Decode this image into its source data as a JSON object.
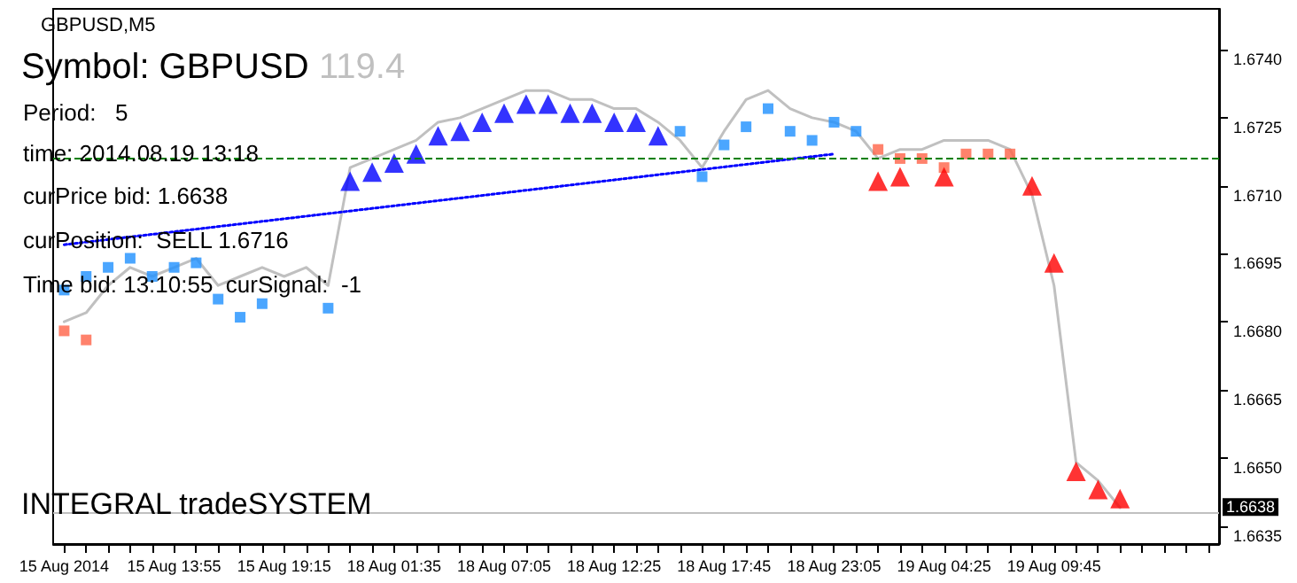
{
  "chart_data": {
    "type": "line",
    "title": "GBPUSD,M5",
    "categories": [
      "15 Aug 2014",
      null,
      null,
      null,
      null,
      "15 Aug 13:55",
      null,
      null,
      null,
      null,
      "15 Aug 19:15",
      null,
      null,
      null,
      null,
      "18 Aug 01:35",
      null,
      null,
      null,
      null,
      "18 Aug 07:05",
      null,
      null,
      null,
      null,
      "18 Aug 12:25",
      null,
      null,
      null,
      null,
      "18 Aug 17:45",
      null,
      null,
      null,
      null,
      "18 Aug 23:05",
      null,
      null,
      null,
      null,
      "19 Aug 04:25",
      null,
      null,
      null,
      null,
      "19 Aug 09:45",
      null,
      null,
      null,
      null,
      null,
      null,
      null
    ],
    "series": [
      {
        "color": "#c0c0c0",
        "marker": "none",
        "values": [
          1.668,
          1.6682,
          1.6688,
          1.6692,
          1.669,
          1.6692,
          1.6694,
          1.6688,
          1.669,
          1.6692,
          1.669,
          1.6692,
          1.6688,
          1.6714,
          1.6716,
          1.6718,
          1.672,
          1.6724,
          1.6725,
          1.6727,
          1.6729,
          1.6731,
          1.6731,
          1.6729,
          1.6729,
          1.6727,
          1.6727,
          1.6724,
          1.672,
          1.6714,
          1.6722,
          1.6729,
          1.6731,
          1.6727,
          1.6725,
          1.6724,
          1.6722,
          1.6716,
          1.6718,
          1.6718,
          1.672,
          1.672,
          1.672,
          1.6718,
          1.6708,
          1.6688,
          1.6649,
          1.6645,
          1.6639,
          null,
          null,
          null,
          null
        ]
      },
      {
        "color": "#0000ff",
        "marker": "none",
        "line_style": "dotted",
        "values": [
          1.6697,
          null,
          null,
          null,
          null,
          null,
          null,
          null,
          null,
          null,
          null,
          null,
          null,
          null,
          null,
          null,
          null,
          null,
          null,
          null,
          null,
          null,
          null,
          null,
          null,
          null,
          null,
          null,
          null,
          null,
          null,
          null,
          null,
          null,
          null,
          1.6717,
          null,
          null,
          null,
          null,
          null,
          null,
          null,
          null,
          null,
          null,
          null,
          null,
          null,
          null,
          null,
          null,
          null
        ]
      },
      {
        "type": "scatter",
        "color": "#1e90ff",
        "marker": "square",
        "values": [
          1.6687,
          1.669,
          1.6692,
          1.6694,
          1.669,
          1.6692,
          1.6693,
          1.6685,
          1.6681,
          1.6684,
          null,
          null,
          1.6683,
          null,
          null,
          null,
          null,
          null,
          null,
          null,
          null,
          null,
          null,
          null,
          null,
          null,
          null,
          null,
          1.6722,
          1.6712,
          1.6719,
          1.6723,
          1.6727,
          1.6722,
          1.672,
          1.6724,
          1.6722,
          null,
          null,
          null,
          null,
          null,
          null,
          null,
          null,
          null,
          null,
          null,
          null,
          null,
          null,
          null,
          null
        ]
      },
      {
        "type": "scatter",
        "color": "#ff6347",
        "marker": "square",
        "values": [
          1.6678,
          1.6676,
          null,
          null,
          null,
          null,
          null,
          null,
          null,
          null,
          null,
          null,
          null,
          null,
          null,
          null,
          null,
          null,
          null,
          null,
          null,
          null,
          null,
          null,
          null,
          null,
          null,
          null,
          null,
          null,
          null,
          null,
          null,
          null,
          null,
          null,
          null,
          1.6718,
          1.6716,
          1.6716,
          1.6714,
          1.6717,
          1.6717,
          1.6717,
          null,
          null,
          null,
          null,
          null,
          null,
          null,
          null,
          null
        ]
      },
      {
        "type": "scatter",
        "color": "#0000ff",
        "marker": "triangle",
        "values": [
          null,
          null,
          null,
          null,
          null,
          null,
          null,
          null,
          null,
          null,
          null,
          null,
          null,
          1.6711,
          1.6713,
          1.6715,
          1.6717,
          1.6721,
          1.6722,
          1.6724,
          1.6726,
          1.6728,
          1.6728,
          1.6726,
          1.6726,
          1.6724,
          1.6724,
          1.6721,
          null,
          null,
          null,
          null,
          null,
          null,
          null,
          null,
          null,
          null,
          null,
          null,
          null,
          null,
          null,
          null,
          null,
          null,
          null,
          null,
          null,
          null,
          null,
          null,
          null
        ]
      },
      {
        "type": "scatter",
        "color": "#ff0000",
        "marker": "triangle",
        "values": [
          null,
          null,
          null,
          null,
          null,
          null,
          null,
          null,
          null,
          null,
          null,
          null,
          null,
          null,
          null,
          null,
          null,
          null,
          null,
          null,
          null,
          null,
          null,
          null,
          null,
          null,
          null,
          null,
          null,
          null,
          null,
          null,
          null,
          null,
          null,
          null,
          null,
          1.6711,
          1.6712,
          null,
          1.6712,
          null,
          null,
          null,
          1.671,
          1.6693,
          1.6647,
          1.6643,
          1.6641,
          null,
          null,
          null,
          null
        ]
      }
    ],
    "ylim": [
      1.6631,
      1.6749
    ],
    "yticks": [
      {
        "value": 1.6635,
        "label": "1.6635"
      },
      {
        "value": 1.665,
        "label": "1.6650"
      },
      {
        "value": 1.6665,
        "label": "1.6665"
      },
      {
        "value": 1.668,
        "label": "1.6680"
      },
      {
        "value": 1.6695,
        "label": "1.6695"
      },
      {
        "value": 1.671,
        "label": "1.6710"
      },
      {
        "value": 1.6725,
        "label": "1.6725"
      },
      {
        "value": 1.674,
        "label": "1.6740"
      }
    ],
    "ref_lines": [
      {
        "axis": "y",
        "value": 1.6716,
        "label": null,
        "color": "#008000",
        "line_style": "dashed"
      },
      {
        "axis": "y",
        "value": 1.6638,
        "label": "1.6638",
        "color": "#c0c0c0",
        "line_style": "solid"
      }
    ],
    "annotations": [
      "Symbol: GBPUSD",
      "119.4",
      "Period:   5",
      "time: 2014.08.19 13:18",
      "curPrice bid: 1.6638",
      "curPosition:  SELL 1.6716",
      "Time bid: 13:10:55  curSignal:  -1",
      "INTEGRAL tradeSYSTEM"
    ],
    "grid": false
  }
}
